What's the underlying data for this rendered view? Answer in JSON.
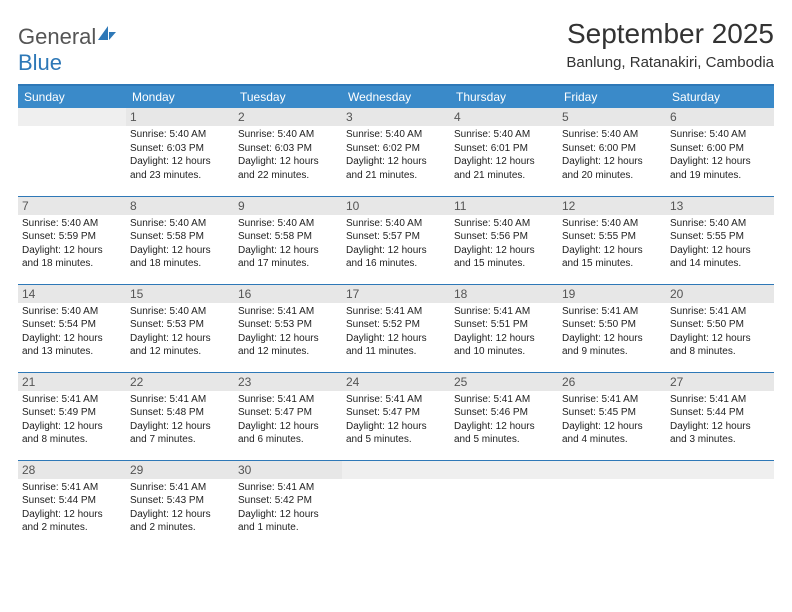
{
  "brand": {
    "name_main": "General",
    "name_sub": "Blue"
  },
  "title": "September 2025",
  "location": "Banlung, Ratanakiri, Cambodia",
  "calendar": {
    "header_bg": "#3a8ac9",
    "border_color": "#2e78b7",
    "daynum_bg": "#e7e7e7",
    "font_family": "Arial",
    "day_headers": [
      "Sunday",
      "Monday",
      "Tuesday",
      "Wednesday",
      "Thursday",
      "Friday",
      "Saturday"
    ],
    "weeks": [
      [
        {
          "empty": true
        },
        {
          "n": "1",
          "sunrise": "Sunrise: 5:40 AM",
          "sunset": "Sunset: 6:03 PM",
          "daylight": "Daylight: 12 hours and 23 minutes."
        },
        {
          "n": "2",
          "sunrise": "Sunrise: 5:40 AM",
          "sunset": "Sunset: 6:03 PM",
          "daylight": "Daylight: 12 hours and 22 minutes."
        },
        {
          "n": "3",
          "sunrise": "Sunrise: 5:40 AM",
          "sunset": "Sunset: 6:02 PM",
          "daylight": "Daylight: 12 hours and 21 minutes."
        },
        {
          "n": "4",
          "sunrise": "Sunrise: 5:40 AM",
          "sunset": "Sunset: 6:01 PM",
          "daylight": "Daylight: 12 hours and 21 minutes."
        },
        {
          "n": "5",
          "sunrise": "Sunrise: 5:40 AM",
          "sunset": "Sunset: 6:00 PM",
          "daylight": "Daylight: 12 hours and 20 minutes."
        },
        {
          "n": "6",
          "sunrise": "Sunrise: 5:40 AM",
          "sunset": "Sunset: 6:00 PM",
          "daylight": "Daylight: 12 hours and 19 minutes."
        }
      ],
      [
        {
          "n": "7",
          "sunrise": "Sunrise: 5:40 AM",
          "sunset": "Sunset: 5:59 PM",
          "daylight": "Daylight: 12 hours and 18 minutes."
        },
        {
          "n": "8",
          "sunrise": "Sunrise: 5:40 AM",
          "sunset": "Sunset: 5:58 PM",
          "daylight": "Daylight: 12 hours and 18 minutes."
        },
        {
          "n": "9",
          "sunrise": "Sunrise: 5:40 AM",
          "sunset": "Sunset: 5:58 PM",
          "daylight": "Daylight: 12 hours and 17 minutes."
        },
        {
          "n": "10",
          "sunrise": "Sunrise: 5:40 AM",
          "sunset": "Sunset: 5:57 PM",
          "daylight": "Daylight: 12 hours and 16 minutes."
        },
        {
          "n": "11",
          "sunrise": "Sunrise: 5:40 AM",
          "sunset": "Sunset: 5:56 PM",
          "daylight": "Daylight: 12 hours and 15 minutes."
        },
        {
          "n": "12",
          "sunrise": "Sunrise: 5:40 AM",
          "sunset": "Sunset: 5:55 PM",
          "daylight": "Daylight: 12 hours and 15 minutes."
        },
        {
          "n": "13",
          "sunrise": "Sunrise: 5:40 AM",
          "sunset": "Sunset: 5:55 PM",
          "daylight": "Daylight: 12 hours and 14 minutes."
        }
      ],
      [
        {
          "n": "14",
          "sunrise": "Sunrise: 5:40 AM",
          "sunset": "Sunset: 5:54 PM",
          "daylight": "Daylight: 12 hours and 13 minutes."
        },
        {
          "n": "15",
          "sunrise": "Sunrise: 5:40 AM",
          "sunset": "Sunset: 5:53 PM",
          "daylight": "Daylight: 12 hours and 12 minutes."
        },
        {
          "n": "16",
          "sunrise": "Sunrise: 5:41 AM",
          "sunset": "Sunset: 5:53 PM",
          "daylight": "Daylight: 12 hours and 12 minutes."
        },
        {
          "n": "17",
          "sunrise": "Sunrise: 5:41 AM",
          "sunset": "Sunset: 5:52 PM",
          "daylight": "Daylight: 12 hours and 11 minutes."
        },
        {
          "n": "18",
          "sunrise": "Sunrise: 5:41 AM",
          "sunset": "Sunset: 5:51 PM",
          "daylight": "Daylight: 12 hours and 10 minutes."
        },
        {
          "n": "19",
          "sunrise": "Sunrise: 5:41 AM",
          "sunset": "Sunset: 5:50 PM",
          "daylight": "Daylight: 12 hours and 9 minutes."
        },
        {
          "n": "20",
          "sunrise": "Sunrise: 5:41 AM",
          "sunset": "Sunset: 5:50 PM",
          "daylight": "Daylight: 12 hours and 8 minutes."
        }
      ],
      [
        {
          "n": "21",
          "sunrise": "Sunrise: 5:41 AM",
          "sunset": "Sunset: 5:49 PM",
          "daylight": "Daylight: 12 hours and 8 minutes."
        },
        {
          "n": "22",
          "sunrise": "Sunrise: 5:41 AM",
          "sunset": "Sunset: 5:48 PM",
          "daylight": "Daylight: 12 hours and 7 minutes."
        },
        {
          "n": "23",
          "sunrise": "Sunrise: 5:41 AM",
          "sunset": "Sunset: 5:47 PM",
          "daylight": "Daylight: 12 hours and 6 minutes."
        },
        {
          "n": "24",
          "sunrise": "Sunrise: 5:41 AM",
          "sunset": "Sunset: 5:47 PM",
          "daylight": "Daylight: 12 hours and 5 minutes."
        },
        {
          "n": "25",
          "sunrise": "Sunrise: 5:41 AM",
          "sunset": "Sunset: 5:46 PM",
          "daylight": "Daylight: 12 hours and 5 minutes."
        },
        {
          "n": "26",
          "sunrise": "Sunrise: 5:41 AM",
          "sunset": "Sunset: 5:45 PM",
          "daylight": "Daylight: 12 hours and 4 minutes."
        },
        {
          "n": "27",
          "sunrise": "Sunrise: 5:41 AM",
          "sunset": "Sunset: 5:44 PM",
          "daylight": "Daylight: 12 hours and 3 minutes."
        }
      ],
      [
        {
          "n": "28",
          "sunrise": "Sunrise: 5:41 AM",
          "sunset": "Sunset: 5:44 PM",
          "daylight": "Daylight: 12 hours and 2 minutes."
        },
        {
          "n": "29",
          "sunrise": "Sunrise: 5:41 AM",
          "sunset": "Sunset: 5:43 PM",
          "daylight": "Daylight: 12 hours and 2 minutes."
        },
        {
          "n": "30",
          "sunrise": "Sunrise: 5:41 AM",
          "sunset": "Sunset: 5:42 PM",
          "daylight": "Daylight: 12 hours and 1 minute."
        },
        {
          "empty": true
        },
        {
          "empty": true
        },
        {
          "empty": true
        },
        {
          "empty": true
        }
      ]
    ]
  }
}
